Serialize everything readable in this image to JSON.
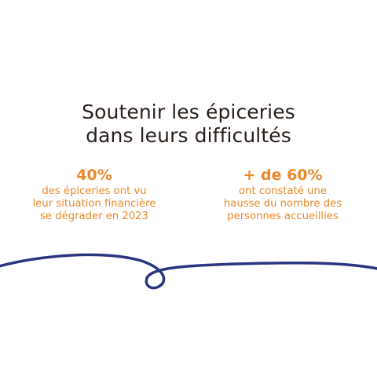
{
  "title": {
    "line1": "Soutenir les épiceries",
    "line2": "dans leurs difficultés"
  },
  "stats": [
    {
      "value": "40%",
      "lines": [
        "des épiceries ont vu",
        "leur situation financière",
        "se dégrader en 2023"
      ]
    },
    {
      "value": "+ de 60%",
      "lines": [
        "ont constaté une",
        "hausse du nombre des",
        "personnes accueillies"
      ]
    }
  ],
  "colors": {
    "title": "#2a1f1b",
    "accent": "#e8892b",
    "curve": "#2b3580",
    "background": "#ffffff"
  }
}
